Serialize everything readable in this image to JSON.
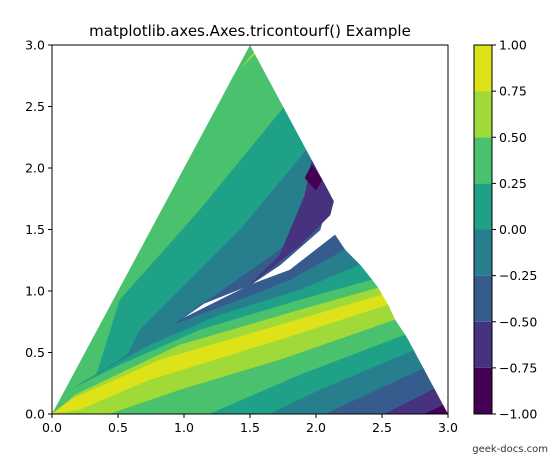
{
  "chart_data": {
    "type": "tricontourf",
    "title": "matplotlib.axes.Axes.tricontourf() Example",
    "xlim": [
      0.0,
      3.0
    ],
    "ylim": [
      0.0,
      3.0
    ],
    "x_ticks": [
      "0.0",
      "0.5",
      "1.0",
      "1.5",
      "2.0",
      "2.5",
      "3.0"
    ],
    "y_ticks": [
      "0.0",
      "0.5",
      "1.0",
      "1.5",
      "2.0",
      "2.5",
      "3.0"
    ],
    "triangle_vertices": [
      [
        0.0,
        0.0
      ],
      [
        3.0,
        0.0
      ],
      [
        1.5,
        3.0
      ]
    ],
    "grid": false,
    "colorbar": {
      "levels": [
        -1.0,
        -0.75,
        -0.5,
        -0.25,
        0.0,
        0.25,
        0.5,
        0.75,
        1.0
      ],
      "tick_labels": [
        "−1.00",
        "−0.75",
        "−0.50",
        "−0.25",
        "0.00",
        "0.25",
        "0.50",
        "0.75",
        "1.00"
      ],
      "colors": [
        "#440154",
        "#46327e",
        "#365c8d",
        "#277f8e",
        "#1fa187",
        "#4ac16d",
        "#a0da39",
        "#dde318"
      ],
      "placement": "right"
    }
  },
  "watermark": "geek-docs.com"
}
